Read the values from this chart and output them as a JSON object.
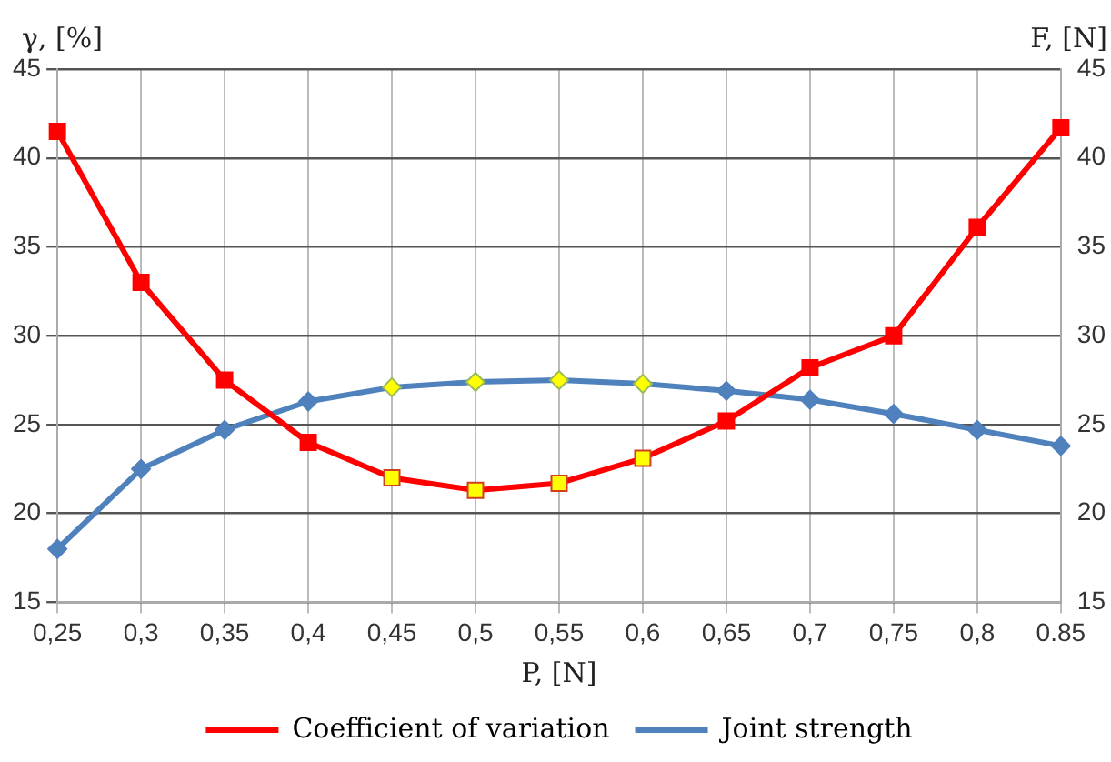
{
  "chart_data": {
    "type": "line",
    "xlabel": "P, [N]",
    "ylabel": "γ, [%]",
    "y2label": "F, [N]",
    "categories": [
      "0,25",
      "0,3",
      "0,35",
      "0,4",
      "0,45",
      "0,5",
      "0,55",
      "0,6",
      "0,65",
      "0,7",
      "0,75",
      "0,8",
      "0.85"
    ],
    "series": [
      {
        "name": "Coefficient of variation",
        "color": "#ff0000",
        "marker": "square",
        "colors": [
          "#ff0000",
          "#ff0000",
          "#ff0000",
          "#ff0000",
          "#ffff00",
          "#ffff00",
          "#ffff00",
          "#ffff00",
          "#ff0000",
          "#ff0000",
          "#ff0000",
          "#ff0000",
          "#ff0000"
        ],
        "values": [
          41.5,
          33.0,
          27.5,
          24.0,
          22.0,
          21.3,
          21.7,
          23.1,
          25.2,
          28.2,
          30.0,
          36.1,
          41.7
        ]
      },
      {
        "name": "Joint strength",
        "color": "#4f81bd",
        "marker": "diamond",
        "axis": "y2",
        "colors": [
          "#4f81bd",
          "#4f81bd",
          "#4f81bd",
          "#4f81bd",
          "#ffff00",
          "#ffff00",
          "#ffff00",
          "#ffff00",
          "#4f81bd",
          "#4f81bd",
          "#4f81bd",
          "#4f81bd",
          "#4f81bd"
        ],
        "values": [
          18.0,
          22.5,
          24.7,
          26.3,
          27.1,
          27.4,
          27.5,
          27.3,
          26.9,
          26.4,
          25.6,
          24.7,
          23.8
        ]
      }
    ],
    "ylim": [
      15,
      45
    ],
    "yticks": [
      15,
      20,
      25,
      30,
      35,
      40,
      45
    ],
    "y2lim": [
      15,
      45
    ],
    "y2ticks": [
      15,
      20,
      25,
      30,
      35,
      40,
      45
    ],
    "grid": true,
    "legend": "bottom",
    "line_style": "solid"
  }
}
